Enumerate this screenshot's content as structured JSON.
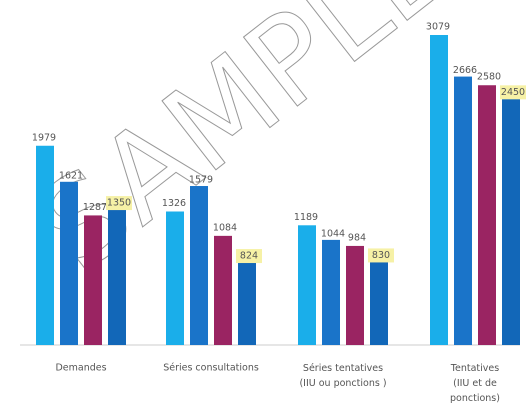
{
  "chart_data": {
    "type": "bar",
    "watermark": "SAMPLE",
    "categories": [
      "Demandes",
      "Séries consultations",
      "Séries tentatives (IIU ou ponctions )",
      "Tentatives (IIU et de ponctions)"
    ],
    "series": [
      {
        "color": "#1aaeea",
        "values": [
          1979,
          1326,
          1189,
          3079
        ]
      },
      {
        "color": "#1a74c9",
        "values": [
          1621,
          1579,
          1044,
          2666
        ]
      },
      {
        "color": "#9a2462",
        "values": [
          1287,
          1084,
          984,
          2580
        ]
      },
      {
        "color": "#1267b8",
        "values": [
          1350,
          824,
          830,
          2450
        ],
        "highlight": "#f6f1a6"
      }
    ]
  }
}
